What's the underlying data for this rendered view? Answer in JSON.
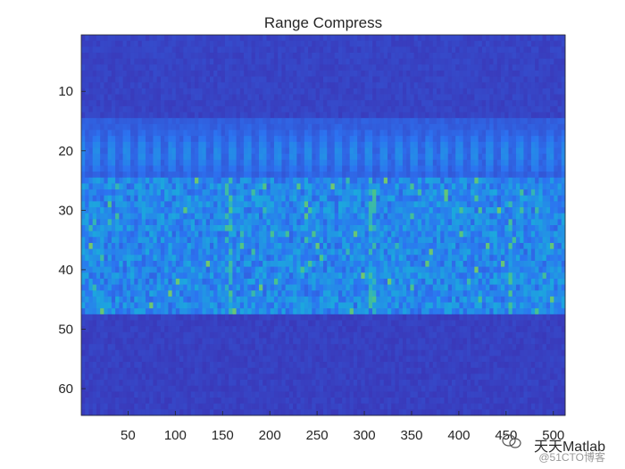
{
  "chart_data": {
    "type": "heatmap",
    "title": "Range Compress",
    "xlabel": "",
    "ylabel": "",
    "xlim": [
      0.5,
      512.5
    ],
    "ylim": [
      0.5,
      64.5
    ],
    "y_direction": "reverse",
    "x_ticks": [
      50,
      100,
      150,
      200,
      250,
      300,
      350,
      400,
      450,
      500
    ],
    "y_ticks": [
      10,
      20,
      30,
      40,
      50,
      60
    ],
    "colormap": "parula",
    "colors": {
      "low": "#3e26a8",
      "mid_low": "#2c73f1",
      "mid": "#1ca8dd",
      "mid_high": "#4cc38a",
      "high": "#e6d21a"
    },
    "bands": [
      {
        "rows": [
          1,
          14
        ],
        "level": "low"
      },
      {
        "rows": [
          15,
          24
        ],
        "level": "mid_low",
        "pattern": "periodic blobs"
      },
      {
        "rows": [
          25,
          47
        ],
        "level": "mid",
        "pattern": "streaked with bright spots"
      },
      {
        "rows": [
          48,
          64
        ],
        "level": "low"
      }
    ]
  },
  "watermark": {
    "line1": "天天Matlab",
    "line2": "@51CTO博客",
    "icon": "wechat-icon"
  }
}
